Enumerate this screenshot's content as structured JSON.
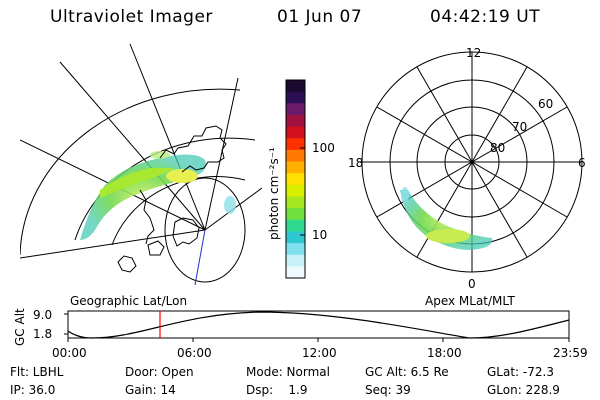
{
  "header": {
    "instrument": "Ultraviolet Imager",
    "date": "01 Jun 07",
    "time": "04:42:19 UT"
  },
  "colorbar": {
    "unit_label": "photon cm⁻²s⁻¹",
    "ticks": [
      "100",
      "10"
    ],
    "colors": [
      "#1a0a2e",
      "#2b0f55",
      "#6a1a6a",
      "#a01040",
      "#d0101a",
      "#ff3000",
      "#ff7a00",
      "#ffb000",
      "#ffe000",
      "#d8f000",
      "#a8e820",
      "#70e040",
      "#30d890",
      "#30c8d0",
      "#80e0ee",
      "#c8f0f8",
      "#eefafe"
    ]
  },
  "geo_map": {
    "caption": "Geographic Lat/Lon",
    "auroral_color": "#7ad840"
  },
  "polar_map": {
    "caption": "Apex MLat/MLT",
    "mlt_labels": [
      "12",
      "18",
      "6",
      "0"
    ],
    "lat_labels": [
      "60",
      "70",
      "80"
    ]
  },
  "timeline": {
    "ylabel": "GC Alt",
    "yticks": [
      "9.0",
      "1.8"
    ],
    "xticks": [
      "00:00",
      "06:00",
      "12:00",
      "18:00",
      "23:59"
    ],
    "current_marker_color": "#ff0000"
  },
  "footer": {
    "row1": [
      "Flt: LBHL",
      "Door: Open",
      "Mode: Normal",
      "GC Alt: 6.5 Re",
      "GLat: -72.3"
    ],
    "row2": [
      "IP: 36.0",
      "Gain: 14",
      "Dsp:    1.9",
      "Seq: 39",
      "GLon: 228.9"
    ]
  }
}
